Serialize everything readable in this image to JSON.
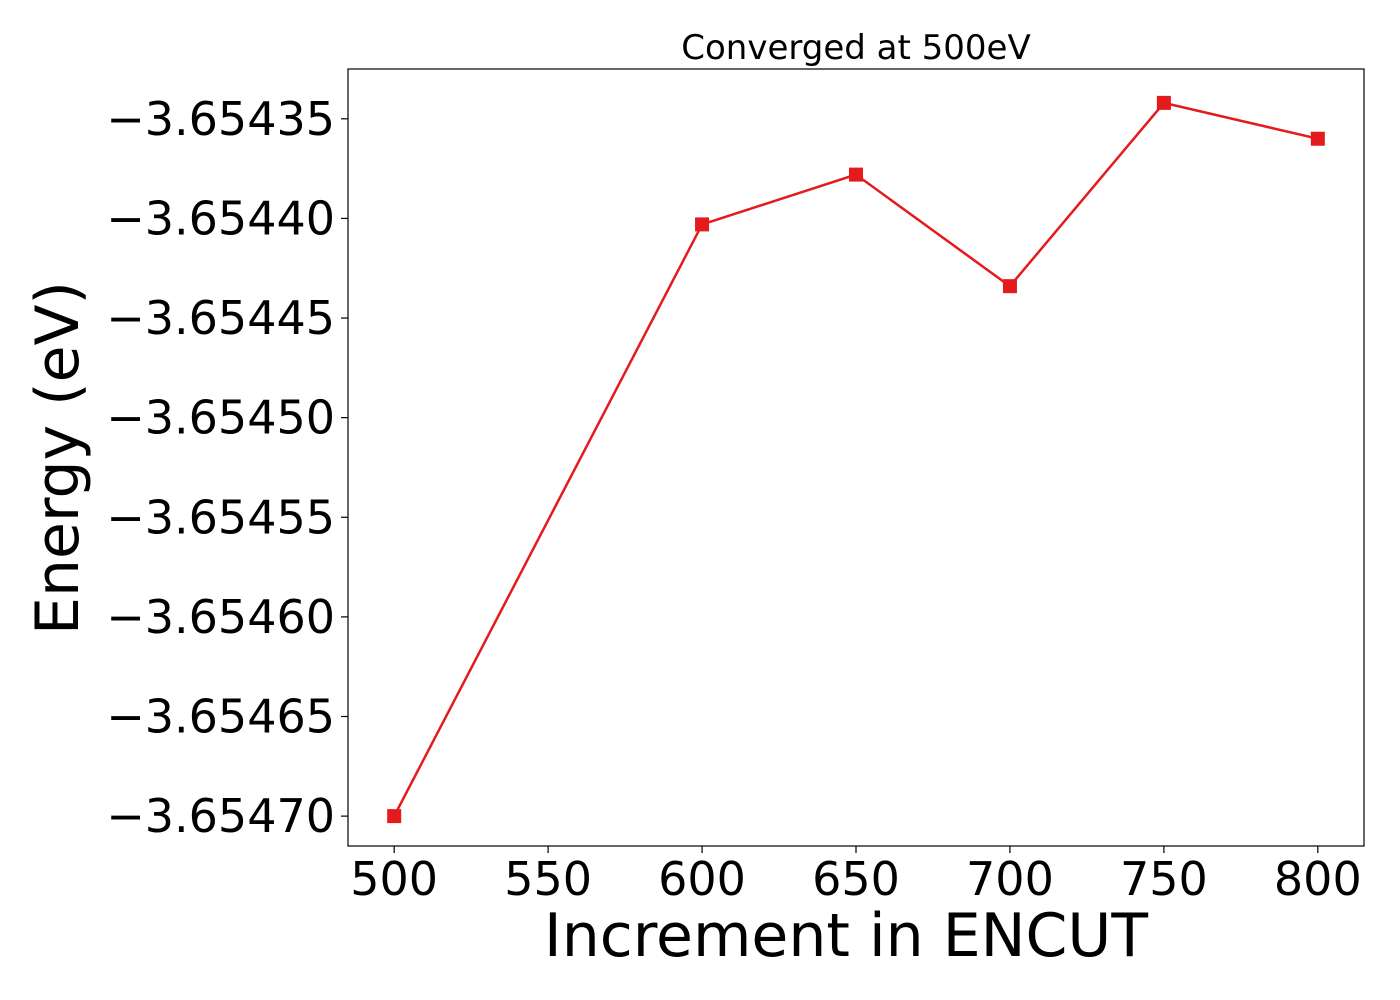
{
  "chart_data": {
    "type": "line",
    "title": "Converged at 500eV",
    "xlabel": "Increment in ENCUT",
    "ylabel": "Energy (eV)",
    "x": [
      500,
      600,
      650,
      700,
      750,
      800
    ],
    "series": [
      {
        "values": [
          -3.6547,
          -3.654403,
          -3.654378,
          -3.654434,
          -3.654342,
          -3.65436
        ],
        "color": "#e41a1c",
        "marker": "square"
      }
    ],
    "xticks": [
      500,
      550,
      600,
      650,
      700,
      750,
      800
    ],
    "xtick_labels": [
      "500",
      "550",
      "600",
      "650",
      "700",
      "750",
      "800"
    ],
    "yticks": [
      -3.65435,
      -3.6544,
      -3.65445,
      -3.6545,
      -3.65455,
      -3.6546,
      -3.65465,
      -3.6547
    ],
    "ytick_labels": [
      "−3.65435",
      "−3.65440",
      "−3.65445",
      "−3.65450",
      "−3.65455",
      "−3.65460",
      "−3.65465",
      "−3.65470"
    ],
    "xlim": [
      485,
      815
    ],
    "ylim": [
      -3.654715,
      -3.654325
    ],
    "grid": false,
    "legend": "none"
  }
}
